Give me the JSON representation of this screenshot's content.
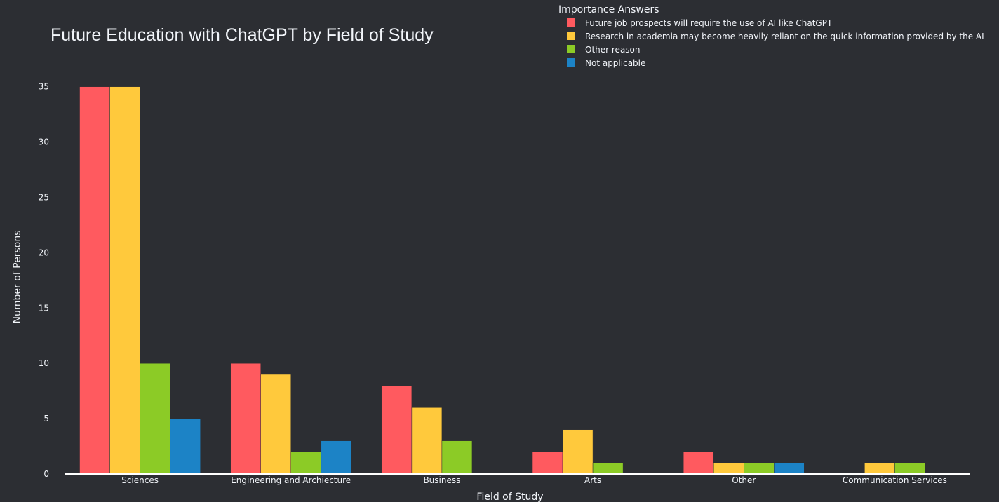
{
  "chart_data": {
    "type": "bar",
    "title": "Future Education with ChatGPT by Field of Study",
    "xlabel": "Field of Study",
    "ylabel": "Number of Persons",
    "ylim": [
      0,
      36.5
    ],
    "yticks": [
      0,
      5,
      10,
      15,
      20,
      25,
      30,
      35
    ],
    "grid": false,
    "legend_position": "top-right",
    "legend_title": "Importance Answers",
    "categories": [
      "Sciences",
      "Engineering and Archiecture",
      "Business",
      "Arts",
      "Other",
      "Communication Services"
    ],
    "series": [
      {
        "name": "Future job prospects will require the use of AI like ChatGPT",
        "color": "#ff5a5f",
        "values": [
          35,
          10,
          8,
          2,
          2,
          0
        ]
      },
      {
        "name": "Research in academia may become heavily reliant on the quick information provided by the AI",
        "color": "#ffc93c",
        "values": [
          35,
          9,
          6,
          4,
          1,
          1
        ]
      },
      {
        "name": "Other reason",
        "color": "#8ccb26",
        "values": [
          10,
          2,
          3,
          1,
          1,
          1
        ]
      },
      {
        "name": "Not applicable",
        "color": "#1c83c6",
        "values": [
          5,
          3,
          0,
          0,
          1,
          0
        ]
      }
    ]
  }
}
